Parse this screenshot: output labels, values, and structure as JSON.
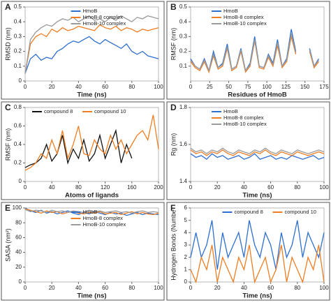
{
  "chart_data": [
    {
      "type": "line",
      "label": "A",
      "x_label": "Time (ns)",
      "y_label": "RMSD (nm)",
      "legend": "upper center",
      "xlim": [
        0,
        100
      ],
      "xticks": [
        0,
        20,
        40,
        60,
        80,
        100
      ],
      "ylim": [
        0,
        0.5
      ],
      "yticks": [
        0,
        0.1,
        0.2,
        0.3,
        0.4,
        0.5
      ],
      "x": [
        0,
        4,
        8,
        12,
        16,
        20,
        24,
        28,
        32,
        36,
        40,
        44,
        48,
        52,
        56,
        60,
        64,
        68,
        72,
        76,
        80,
        84,
        88,
        92,
        96,
        100
      ],
      "series": [
        {
          "name": "HmoB",
          "color": "#2e6fcf",
          "values": [
            0.05,
            0.15,
            0.18,
            0.14,
            0.16,
            0.15,
            0.2,
            0.22,
            0.25,
            0.27,
            0.26,
            0.28,
            0.3,
            0.27,
            0.25,
            0.28,
            0.26,
            0.24,
            0.22,
            0.25,
            0.2,
            0.18,
            0.2,
            0.17,
            0.16,
            0.15
          ]
        },
        {
          "name": "HmoB-8 complex",
          "color": "#ef7d22",
          "values": [
            0.05,
            0.25,
            0.3,
            0.32,
            0.3,
            0.35,
            0.33,
            0.36,
            0.34,
            0.35,
            0.37,
            0.36,
            0.35,
            0.34,
            0.38,
            0.36,
            0.35,
            0.37,
            0.34,
            0.36,
            0.35,
            0.33,
            0.35,
            0.34,
            0.35,
            0.36
          ]
        },
        {
          "name": "HmoB-10 complex",
          "color": "#9a9a9a",
          "values": [
            0.05,
            0.28,
            0.33,
            0.36,
            0.38,
            0.37,
            0.4,
            0.42,
            0.41,
            0.43,
            0.4,
            0.42,
            0.44,
            0.41,
            0.42,
            0.4,
            0.43,
            0.41,
            0.44,
            0.42,
            0.4,
            0.43,
            0.42,
            0.44,
            0.43,
            0.42
          ]
        }
      ]
    },
    {
      "type": "line",
      "label": "B",
      "x_label": "Residues of HmoB",
      "y_label": "RMSF (nm)",
      "legend": "upper left",
      "xlim": [
        0,
        175
      ],
      "xticks": [
        0,
        25,
        50,
        75,
        100,
        125,
        150,
        175
      ],
      "ylim": [
        0,
        0.5
      ],
      "yticks": [
        0.1,
        0.2,
        0.3,
        0.4,
        0.5
      ],
      "x": [
        0,
        6,
        12,
        18,
        24,
        30,
        36,
        42,
        48,
        54,
        60,
        66,
        72,
        78,
        84,
        90,
        96,
        102,
        108,
        114,
        120,
        126,
        132,
        138,
        144,
        150,
        156,
        162,
        168
      ],
      "series": [
        {
          "name": "HmoB",
          "color": "#2e6fcf",
          "values": [
            0.15,
            0.1,
            0.08,
            0.15,
            0.07,
            0.2,
            0.09,
            0.12,
            0.25,
            0.08,
            0.1,
            0.22,
            0.07,
            0.12,
            0.3,
            0.1,
            0.09,
            0.18,
            0.12,
            0.28,
            0.1,
            0.15,
            0.35,
            0.2,
            null,
            null,
            0.22,
            0.1,
            0.15
          ]
        },
        {
          "name": "HmoB-8 complex",
          "color": "#ef7d22",
          "values": [
            0.13,
            0.09,
            0.07,
            0.13,
            0.06,
            0.17,
            0.08,
            0.1,
            0.22,
            0.07,
            0.09,
            0.2,
            0.06,
            0.1,
            0.27,
            0.09,
            0.08,
            0.16,
            0.1,
            0.24,
            0.09,
            0.13,
            0.3,
            0.18,
            null,
            null,
            0.2,
            0.09,
            0.13
          ]
        },
        {
          "name": "HmoB-10 complex",
          "color": "#9a9a9a",
          "values": [
            0.14,
            0.1,
            0.08,
            0.14,
            0.07,
            0.18,
            0.09,
            0.11,
            0.23,
            0.08,
            0.1,
            0.21,
            0.07,
            0.11,
            0.28,
            0.1,
            0.09,
            0.17,
            0.11,
            0.26,
            0.1,
            0.14,
            0.32,
            0.19,
            null,
            null,
            0.21,
            0.1,
            0.14
          ]
        }
      ]
    },
    {
      "type": "line",
      "label": "C",
      "x_label": "Atoms of ligands",
      "y_label": "RMSF (nm)",
      "legend": "upper left",
      "xlim": [
        0,
        200
      ],
      "xticks": [
        0,
        40,
        80,
        120,
        160,
        200
      ],
      "ylim": [
        0,
        0.8
      ],
      "yticks": [
        0,
        0.2,
        0.4,
        0.6,
        0.8
      ],
      "series": [
        {
          "name": "compound 8",
          "color": "#111111",
          "x": [
            0,
            8,
            16,
            24,
            32,
            40,
            48,
            56,
            64,
            72,
            80,
            88,
            96,
            104,
            112,
            120,
            128,
            136,
            144,
            152,
            160
          ],
          "values": [
            0.15,
            0.18,
            0.2,
            0.25,
            0.4,
            0.22,
            0.3,
            0.5,
            0.2,
            0.35,
            0.25,
            0.45,
            0.22,
            0.3,
            0.5,
            0.25,
            0.4,
            0.55,
            0.2,
            0.4,
            0.25
          ]
        },
        {
          "name": "compound 10",
          "color": "#ef7d22",
          "x": [
            0,
            8,
            16,
            24,
            32,
            40,
            48,
            56,
            64,
            72,
            80,
            88,
            96,
            104,
            112,
            120,
            128,
            136,
            144,
            152,
            160,
            168,
            176,
            184,
            192,
            200
          ],
          "values": [
            0.12,
            0.15,
            0.2,
            0.3,
            0.25,
            0.45,
            0.3,
            0.55,
            0.25,
            0.4,
            0.6,
            0.3,
            0.28,
            0.45,
            0.35,
            0.3,
            0.5,
            0.35,
            0.45,
            0.3,
            0.4,
            0.5,
            0.55,
            0.45,
            0.72,
            0.35
          ]
        }
      ]
    },
    {
      "type": "line",
      "label": "D",
      "x_label": "Time (ns)",
      "y_label": "Rg (nm)",
      "legend": "upper left",
      "xlim": [
        0,
        100
      ],
      "xticks": [
        0,
        20,
        40,
        60,
        80,
        100
      ],
      "ylim": [
        1.4,
        1.8
      ],
      "yticks": [
        1.4,
        1.6,
        1.8
      ],
      "x": [
        0,
        4,
        8,
        12,
        16,
        20,
        24,
        28,
        32,
        36,
        40,
        44,
        48,
        52,
        56,
        60,
        64,
        68,
        72,
        76,
        80,
        84,
        88,
        92,
        96,
        100
      ],
      "series": [
        {
          "name": "HmoB",
          "color": "#2e6fcf",
          "values": [
            1.55,
            1.53,
            1.54,
            1.52,
            1.55,
            1.53,
            1.54,
            1.52,
            1.53,
            1.54,
            1.52,
            1.53,
            1.55,
            1.52,
            1.53,
            1.54,
            1.52,
            1.53,
            1.52,
            1.54,
            1.53,
            1.52,
            1.53,
            1.54,
            1.52,
            1.53
          ]
        },
        {
          "name": "HmoB-8 complex",
          "color": "#ef7d22",
          "values": [
            1.57,
            1.55,
            1.56,
            1.54,
            1.56,
            1.55,
            1.57,
            1.55,
            1.54,
            1.56,
            1.55,
            1.54,
            1.56,
            1.55,
            1.57,
            1.55,
            1.54,
            1.56,
            1.55,
            1.54,
            1.56,
            1.55,
            1.54,
            1.55,
            1.56,
            1.55
          ]
        },
        {
          "name": "HmoB-10 complex",
          "color": "#9a9a9a",
          "values": [
            1.58,
            1.56,
            1.57,
            1.55,
            1.57,
            1.56,
            1.58,
            1.56,
            1.55,
            1.57,
            1.56,
            1.55,
            1.57,
            1.56,
            1.58,
            1.56,
            1.55,
            1.57,
            1.56,
            1.55,
            1.57,
            1.56,
            1.55,
            1.56,
            1.57,
            1.56
          ]
        }
      ]
    },
    {
      "type": "line",
      "label": "E",
      "x_label": "Time (ns)",
      "y_label": "SASA (nm²)",
      "legend": "upper center",
      "xlim": [
        0,
        100
      ],
      "xticks": [
        0,
        20,
        40,
        60,
        80,
        100
      ],
      "ylim": [
        0,
        100
      ],
      "yticks": [
        0,
        20,
        40,
        60,
        80,
        100
      ],
      "x": [
        0,
        4,
        8,
        12,
        16,
        20,
        24,
        28,
        32,
        36,
        40,
        44,
        48,
        52,
        56,
        60,
        64,
        68,
        72,
        76,
        80,
        84,
        88,
        92,
        96,
        100
      ],
      "series": [
        {
          "name": "HmoB",
          "color": "#2e6fcf",
          "values": [
            100,
            96,
            94,
            97,
            93,
            95,
            92,
            94,
            96,
            93,
            91,
            94,
            92,
            95,
            93,
            91,
            94,
            92,
            93,
            90,
            92,
            94,
            91,
            93,
            92,
            91
          ]
        },
        {
          "name": "HmoB-8 complex",
          "color": "#ef7d22",
          "values": [
            99,
            97,
            95,
            93,
            96,
            94,
            95,
            92,
            94,
            95,
            93,
            92,
            94,
            93,
            95,
            92,
            93,
            94,
            91,
            93,
            95,
            92,
            94,
            92,
            91,
            93
          ]
        },
        {
          "name": "HmoB-10 complex",
          "color": "#9a9a9a",
          "values": [
            98,
            95,
            97,
            96,
            94,
            97,
            95,
            96,
            94,
            96,
            95,
            94,
            97,
            95,
            96,
            94,
            95,
            96,
            94,
            95,
            93,
            95,
            96,
            94,
            95,
            94
          ]
        }
      ]
    },
    {
      "type": "line",
      "label": "F",
      "x_label": "Time (ns)",
      "y_label": "Hydrogen Bonds (Numbe",
      "legend": "upper center",
      "xlim": [
        0,
        100
      ],
      "xticks": [
        0,
        20,
        40,
        60,
        80,
        100
      ],
      "ylim": [
        0,
        6
      ],
      "yticks": [
        0,
        1,
        2,
        3,
        4,
        5,
        6
      ],
      "x": [
        0,
        4,
        8,
        12,
        16,
        20,
        24,
        28,
        32,
        36,
        40,
        44,
        48,
        52,
        56,
        60,
        64,
        68,
        72,
        76,
        80,
        84,
        88,
        92,
        96,
        100
      ],
      "series": [
        {
          "name": "compound 8",
          "color": "#2e6fcf",
          "values": [
            2,
            4,
            2,
            3,
            5,
            1,
            4,
            2,
            3,
            4,
            2,
            5,
            3,
            2,
            4,
            3,
            1,
            4,
            2,
            3,
            5,
            2,
            4,
            3,
            2,
            4
          ]
        },
        {
          "name": "compound 10",
          "color": "#ef7d22",
          "values": [
            1,
            0,
            2,
            1,
            3,
            0,
            2,
            1,
            0,
            2,
            1,
            3,
            0,
            1,
            2,
            0,
            1,
            3,
            0,
            2,
            1,
            0,
            2,
            1,
            3,
            0
          ]
        }
      ]
    }
  ]
}
